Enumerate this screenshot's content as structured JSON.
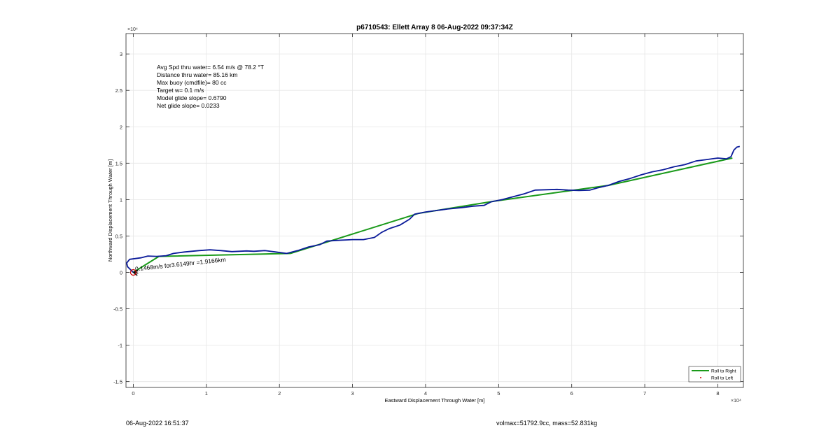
{
  "chart_data": {
    "type": "line",
    "title": "p6710543: Ellett Array 8 06-Aug-2022 09:37:34Z",
    "xlabel": "Eastward Displacement Through Water [m]",
    "ylabel": "Northward Displacement Through Water [m]",
    "x_multiplier": "×10⁴",
    "y_multiplier": "×10⁴",
    "xlim": [
      -1000,
      83500
    ],
    "ylim": [
      -15800,
      32800
    ],
    "xticks": [
      0,
      10000,
      20000,
      30000,
      40000,
      50000,
      60000,
      70000,
      80000
    ],
    "xtick_labels": [
      "0",
      "1",
      "2",
      "3",
      "4",
      "5",
      "6",
      "7",
      "8"
    ],
    "yticks": [
      -15000,
      -10000,
      -5000,
      0,
      5000,
      10000,
      15000,
      20000,
      25000,
      30000
    ],
    "ytick_labels": [
      "-1.5",
      "-1",
      "-0.5",
      "0",
      "0.5",
      "1",
      "1.5",
      "2",
      "2.5",
      "3"
    ],
    "grid": true,
    "legend_position": "bottom-right",
    "annotation_lines": [
      "Avg Spd thru water=  6.54 m/s @  78.2 °T",
      "Distance thru water= 85.16 km",
      "Max buoy (cmdfile)= 80 cc",
      "Target w= 0.1 m/s",
      "Model glide slope= 0.6790",
      "Net glide slope= 0.0233"
    ],
    "current_label": "0.1468m/s for3.6149hr =1.9166km",
    "series": [
      {
        "name": "Roll to Right",
        "color": "#1a9a1a",
        "points": [
          [
            0,
            0
          ],
          [
            3500,
            2200
          ],
          [
            21500,
            2600
          ],
          [
            39000,
            8100
          ],
          [
            49500,
            9800
          ],
          [
            65000,
            11950
          ],
          [
            82000,
            15700
          ]
        ]
      },
      {
        "name": "Roll to Left",
        "color": "#cc0000",
        "marker": "dot",
        "points": []
      },
      {
        "name": "",
        "color": "#0a1a99",
        "points": [
          [
            0,
            0
          ],
          [
            -800,
            800
          ],
          [
            -900,
            1300
          ],
          [
            -500,
            1800
          ],
          [
            1000,
            2000
          ],
          [
            2000,
            2250
          ],
          [
            3200,
            2200
          ],
          [
            4500,
            2300
          ],
          [
            5500,
            2600
          ],
          [
            7000,
            2800
          ],
          [
            9000,
            3000
          ],
          [
            10500,
            3100
          ],
          [
            12000,
            3000
          ],
          [
            13500,
            2850
          ],
          [
            15500,
            2950
          ],
          [
            16500,
            2900
          ],
          [
            18000,
            3000
          ],
          [
            19500,
            2800
          ],
          [
            21000,
            2600
          ],
          [
            22500,
            3000
          ],
          [
            24000,
            3500
          ],
          [
            25500,
            3800
          ],
          [
            26500,
            4300
          ],
          [
            28000,
            4400
          ],
          [
            30000,
            4500
          ],
          [
            31500,
            4500
          ],
          [
            33000,
            4800
          ],
          [
            34000,
            5500
          ],
          [
            35000,
            6000
          ],
          [
            36500,
            6500
          ],
          [
            37800,
            7300
          ],
          [
            38500,
            8000
          ],
          [
            40000,
            8300
          ],
          [
            41500,
            8500
          ],
          [
            43000,
            8700
          ],
          [
            45000,
            8900
          ],
          [
            46500,
            9100
          ],
          [
            48000,
            9200
          ],
          [
            49000,
            9700
          ],
          [
            50500,
            10000
          ],
          [
            52000,
            10400
          ],
          [
            53500,
            10800
          ],
          [
            55000,
            11300
          ],
          [
            56500,
            11350
          ],
          [
            58000,
            11400
          ],
          [
            59500,
            11300
          ],
          [
            61000,
            11250
          ],
          [
            62500,
            11300
          ],
          [
            63500,
            11600
          ],
          [
            65000,
            11950
          ],
          [
            66500,
            12500
          ],
          [
            68000,
            12900
          ],
          [
            69500,
            13400
          ],
          [
            71000,
            13800
          ],
          [
            72500,
            14100
          ],
          [
            74000,
            14500
          ],
          [
            75500,
            14800
          ],
          [
            77000,
            15300
          ],
          [
            78500,
            15500
          ],
          [
            80000,
            15700
          ],
          [
            81200,
            15600
          ],
          [
            81800,
            15900
          ],
          [
            82200,
            16800
          ],
          [
            82600,
            17200
          ],
          [
            83000,
            17300
          ]
        ]
      }
    ],
    "start_marker": {
      "x": 0,
      "y": 0,
      "color": "#cc0000"
    }
  },
  "footer": {
    "timestamp": "06-Aug-2022 16:51:37",
    "summary": "volmax=51792.9cc, mass=52.831kg"
  }
}
